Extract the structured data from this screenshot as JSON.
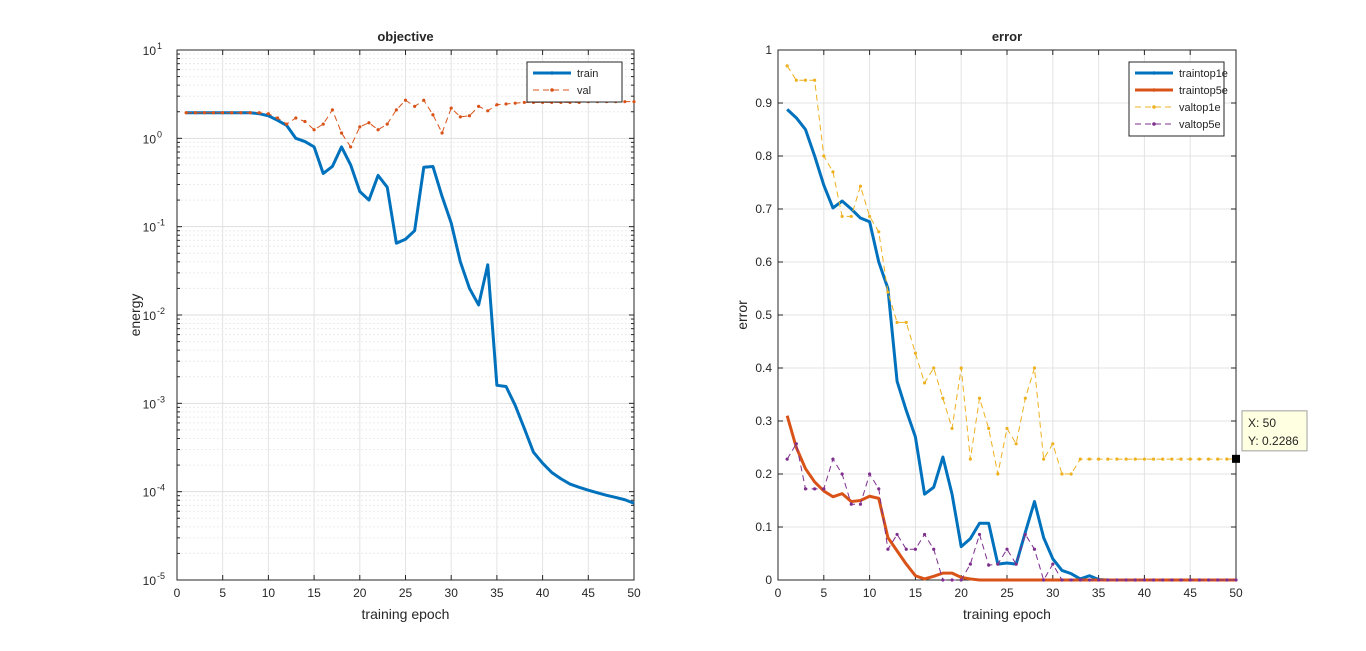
{
  "chart_data": [
    {
      "type": "line",
      "title": "objective",
      "xlabel": "training epoch",
      "ylabel": "energy",
      "xlim": [
        0,
        50
      ],
      "ylim": [
        1e-05,
        10
      ],
      "yscale": "log",
      "xticks": [
        "0",
        "5",
        "10",
        "15",
        "20",
        "25",
        "30",
        "35",
        "40",
        "45",
        "50"
      ],
      "yticks": [
        {
          "base": "10",
          "exp": "1"
        },
        {
          "base": "10",
          "exp": "0"
        },
        {
          "base": "10",
          "exp": "-1"
        },
        {
          "base": "10",
          "exp": "-2"
        },
        {
          "base": "10",
          "exp": "-3"
        },
        {
          "base": "10",
          "exp": "-4"
        },
        {
          "base": "10",
          "exp": "-5"
        }
      ],
      "grid": true,
      "legend_position": "top-right",
      "series": [
        {
          "name": "train",
          "color": "#0072BD",
          "style": "solid",
          "width": 3,
          "marker": "none",
          "values": [
            1.95,
            1.95,
            1.95,
            1.95,
            1.95,
            1.95,
            1.95,
            1.95,
            1.9,
            1.8,
            1.6,
            1.4,
            1.0,
            0.92,
            0.8,
            0.4,
            0.48,
            0.8,
            0.5,
            0.25,
            0.2,
            0.38,
            0.28,
            0.065,
            0.072,
            0.09,
            0.47,
            0.48,
            0.22,
            0.11,
            0.04,
            0.02,
            0.013,
            0.037,
            0.0016,
            0.00155,
            0.00095,
            0.00052,
            0.00028,
            0.00021,
            0.000165,
            0.00014,
            0.000122,
            0.000112,
            0.000104,
            9.7e-05,
            9.1e-05,
            8.6e-05,
            8.1e-05,
            7.4e-05
          ]
        },
        {
          "name": "val",
          "color": "#D95319",
          "style": "dashed",
          "width": 1,
          "marker": "dot",
          "values": [
            1.95,
            1.95,
            1.95,
            1.95,
            1.95,
            1.95,
            1.95,
            1.95,
            1.95,
            1.9,
            1.7,
            1.45,
            1.7,
            1.55,
            1.25,
            1.45,
            2.1,
            1.15,
            0.8,
            1.35,
            1.5,
            1.25,
            1.45,
            2.1,
            2.7,
            2.3,
            2.7,
            1.85,
            1.15,
            2.2,
            1.75,
            1.8,
            2.3,
            2.05,
            2.4,
            2.45,
            2.5,
            2.55,
            2.55,
            2.55,
            2.55,
            2.55,
            2.55,
            2.55,
            2.6,
            2.6,
            2.6,
            2.6,
            2.6,
            2.6
          ]
        }
      ]
    },
    {
      "type": "line",
      "title": "error",
      "xlabel": "training epoch",
      "ylabel": "error",
      "xlim": [
        0,
        50
      ],
      "ylim": [
        0,
        1
      ],
      "xticks": [
        "0",
        "5",
        "10",
        "15",
        "20",
        "25",
        "30",
        "35",
        "40",
        "45",
        "50"
      ],
      "yticks": [
        "0",
        "0.1",
        "0.2",
        "0.3",
        "0.4",
        "0.5",
        "0.6",
        "0.7",
        "0.8",
        "0.9",
        "1"
      ],
      "grid": true,
      "legend_position": "top-right",
      "series": [
        {
          "name": "traintop1e",
          "color": "#0072BD",
          "style": "solid",
          "width": 3,
          "marker": "none",
          "values": [
            0.888,
            0.872,
            0.85,
            0.8,
            0.745,
            0.702,
            0.715,
            0.7,
            0.683,
            0.676,
            0.6,
            0.55,
            0.375,
            0.32,
            0.27,
            0.162,
            0.175,
            0.232,
            0.162,
            0.063,
            0.078,
            0.107,
            0.107,
            0.03,
            0.032,
            0.03,
            0.09,
            0.148,
            0.08,
            0.04,
            0.018,
            0.012,
            0.002,
            0.008,
            0.001,
            0,
            0,
            0,
            0,
            0,
            0,
            0,
            0,
            0,
            0,
            0,
            0,
            0,
            0,
            0
          ]
        },
        {
          "name": "traintop5e",
          "color": "#D95319",
          "style": "solid",
          "width": 3,
          "marker": "none",
          "values": [
            0.31,
            0.25,
            0.21,
            0.185,
            0.168,
            0.157,
            0.163,
            0.148,
            0.15,
            0.158,
            0.154,
            0.08,
            0.055,
            0.03,
            0.008,
            0.002,
            0.007,
            0.013,
            0.013,
            0.005,
            0.002,
            0,
            0,
            0,
            0,
            0,
            0,
            0,
            0,
            0,
            0,
            0,
            0,
            0,
            0,
            0,
            0,
            0,
            0,
            0,
            0,
            0,
            0,
            0,
            0,
            0,
            0,
            0,
            0,
            0
          ]
        },
        {
          "name": "valtop1e",
          "color": "#EDB120",
          "style": "dashed",
          "width": 1,
          "marker": "dot",
          "values": [
            0.97,
            0.943,
            0.943,
            0.943,
            0.8,
            0.77,
            0.686,
            0.686,
            0.743,
            0.686,
            0.657,
            0.543,
            0.486,
            0.486,
            0.428,
            0.372,
            0.4,
            0.343,
            0.286,
            0.4,
            0.228,
            0.343,
            0.286,
            0.2,
            0.286,
            0.257,
            0.343,
            0.4,
            0.228,
            0.257,
            0.2,
            0.2,
            0.228,
            0.228,
            0.228,
            0.228,
            0.228,
            0.228,
            0.228,
            0.228,
            0.228,
            0.228,
            0.228,
            0.228,
            0.228,
            0.228,
            0.228,
            0.228,
            0.228,
            0.2286
          ]
        },
        {
          "name": "valtop5e",
          "color": "#7E2F8E",
          "style": "dashed",
          "width": 1,
          "marker": "dot",
          "values": [
            0.228,
            0.257,
            0.172,
            0.172,
            0.172,
            0.228,
            0.2,
            0.143,
            0.143,
            0.2,
            0.172,
            0.058,
            0.086,
            0.058,
            0.058,
            0.086,
            0.058,
            0,
            0,
            0,
            0.03,
            0.086,
            0.028,
            0.03,
            0.058,
            0.03,
            0.086,
            0.058,
            0,
            0.03,
            0,
            0,
            0,
            0,
            0,
            0,
            0,
            0,
            0,
            0,
            0,
            0,
            0,
            0,
            0,
            0,
            0,
            0,
            0,
            0
          ]
        }
      ],
      "datatip": {
        "x": 50,
        "y": 0.2286,
        "x_text": "X: 50",
        "y_text": "Y: 0.2286"
      }
    }
  ]
}
